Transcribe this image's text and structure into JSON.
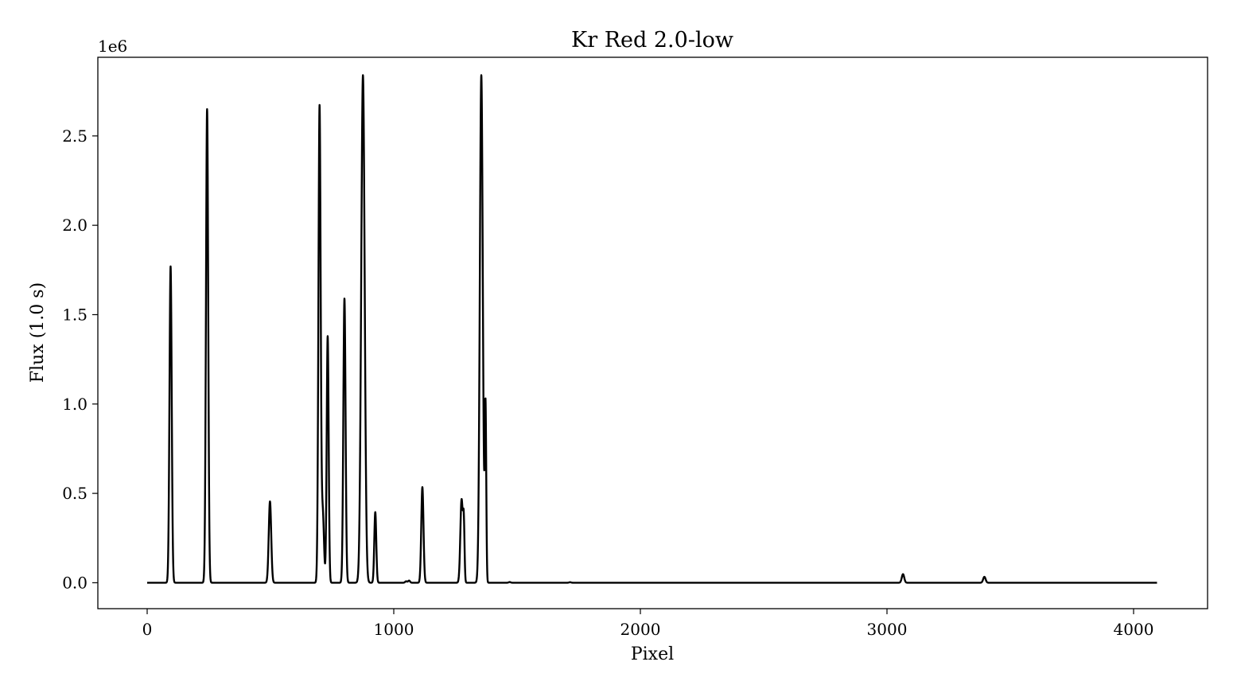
{
  "chart_data": {
    "type": "line",
    "title": "Kr Red 2.0-low",
    "xlabel": "Pixel",
    "ylabel": "Flux (1.0 s)",
    "y_offset_text": "1e6",
    "xlim": [
      -200,
      4300
    ],
    "ylim": [
      -0.145,
      2.94
    ],
    "y_scale": 1000000,
    "x_ticks": [
      0,
      1000,
      2000,
      3000,
      4000
    ],
    "x_tick_labels": [
      "0",
      "1000",
      "2000",
      "3000",
      "4000"
    ],
    "y_ticks": [
      0.0,
      0.5,
      1.0,
      1.5,
      2.0,
      2.5
    ],
    "y_tick_labels": [
      "0.0",
      "0.5",
      "1.0",
      "1.5",
      "2.0",
      "2.5"
    ],
    "grid": false,
    "line_color": "#000000",
    "x_range": [
      0,
      4095
    ],
    "series": [
      {
        "lines": [
          {
            "x": 95,
            "y": 1.77,
            "w": 4.5
          },
          {
            "x": 243,
            "y": 2.65,
            "w": 4.5
          },
          {
            "x": 498,
            "y": 0.455,
            "w": 5
          },
          {
            "x": 699,
            "y": 2.66,
            "w": 4.5
          },
          {
            "x": 712,
            "y": 0.39,
            "w": 5
          },
          {
            "x": 732,
            "y": 1.38,
            "w": 4
          },
          {
            "x": 800,
            "y": 1.59,
            "w": 4.5
          },
          {
            "x": 875,
            "y": 2.84,
            "w": 7
          },
          {
            "x": 925,
            "y": 0.395,
            "w": 4
          },
          {
            "x": 1050,
            "y": 0.008,
            "w": 4
          },
          {
            "x": 1062,
            "y": 0.012,
            "w": 4
          },
          {
            "x": 1116,
            "y": 0.535,
            "w": 4.5
          },
          {
            "x": 1275,
            "y": 0.465,
            "w": 5
          },
          {
            "x": 1284,
            "y": 0.3,
            "w": 3
          },
          {
            "x": 1355,
            "y": 2.84,
            "w": 6
          },
          {
            "x": 1372,
            "y": 0.98,
            "w": 3
          },
          {
            "x": 1470,
            "y": 0.004,
            "w": 4
          },
          {
            "x": 1715,
            "y": 0.003,
            "w": 4
          },
          {
            "x": 3065,
            "y": 0.048,
            "w": 5
          },
          {
            "x": 3395,
            "y": 0.033,
            "w": 5
          }
        ]
      }
    ]
  }
}
